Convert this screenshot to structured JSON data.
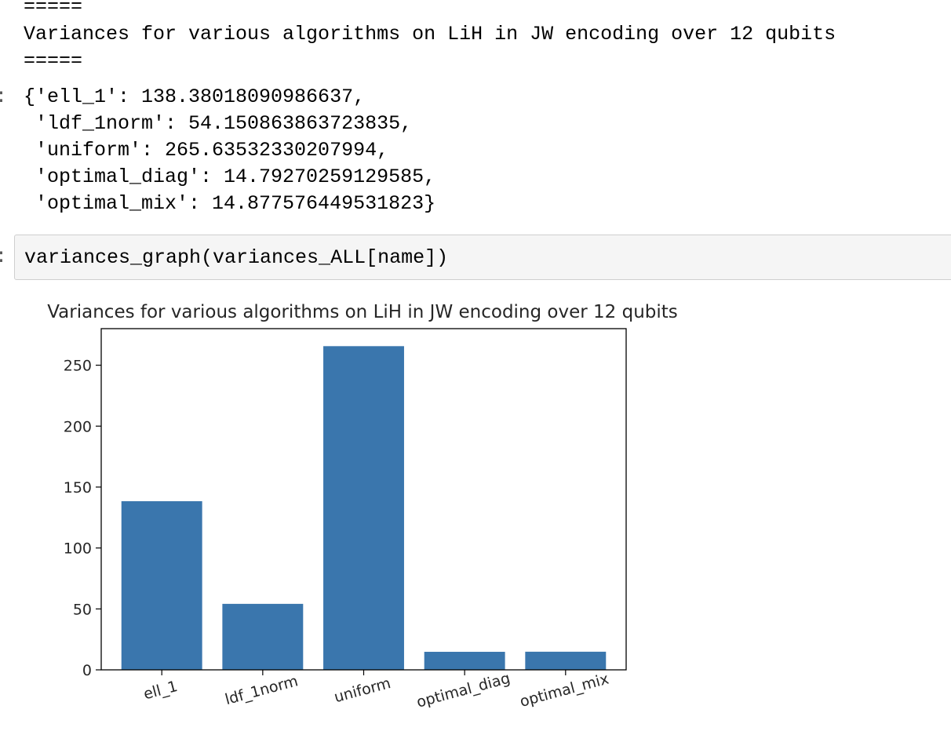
{
  "output": {
    "separator_top": "=====",
    "header_line": "Variances for various algorithms on LiH in JW encoding over 12 qubits",
    "separator_bottom": "=====",
    "prompt_mark": ":",
    "dict_lines": [
      "{'ell_1': 138.38018090986637,",
      " 'ldf_1norm': 54.150863863723835,",
      " 'uniform': 265.63532330207994,",
      " 'optimal_diag': 14.79270259129585,",
      " 'optimal_mix': 14.877576449531823}"
    ]
  },
  "input_cell": {
    "prompt_mark": ":",
    "code": "variances_graph(variances_ALL[name])"
  },
  "colors": {
    "bar": "#3a76ad",
    "cell_bg": "#f5f5f5",
    "cell_border": "#cfcfcf"
  },
  "chart_data": {
    "type": "bar",
    "title": "Variances for various algorithms on LiH in JW encoding over 12 qubits",
    "categories": [
      "ell_1",
      "ldf_1norm",
      "uniform",
      "optimal_diag",
      "optimal_mix"
    ],
    "values": [
      138.38018090986637,
      54.150863863723835,
      265.63532330207994,
      14.79270259129585,
      14.877576449531823
    ],
    "xlabel": "",
    "ylabel": "",
    "ylim": [
      0,
      280
    ],
    "yticks": [
      0,
      50,
      100,
      150,
      200,
      250
    ],
    "ytick_labels": [
      "0",
      "50",
      "100",
      "150",
      "200",
      "250"
    ],
    "xtick_rotation_deg": -15,
    "grid": false
  }
}
